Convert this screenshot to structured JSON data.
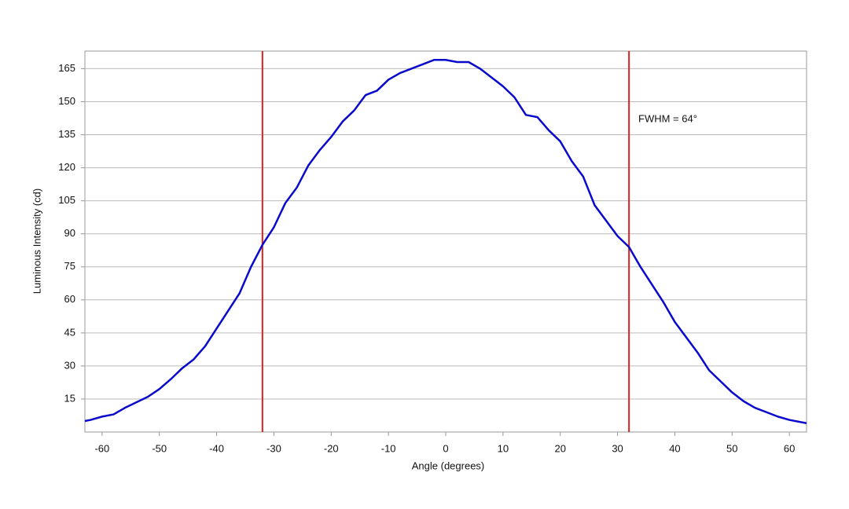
{
  "chart_data": {
    "type": "line",
    "x_label": "Angle (degrees)",
    "y_label": "Luminous Intensity (cd)",
    "annotation": "FWHM = 64°",
    "x": [
      -63,
      -62,
      -60,
      -58,
      -56,
      -54,
      -52,
      -50,
      -48,
      -46,
      -44,
      -42,
      -40,
      -38,
      -36,
      -34,
      -32,
      -30,
      -28,
      -26,
      -24,
      -22,
      -20,
      -18,
      -16,
      -14,
      -12,
      -10,
      -8,
      -6,
      -4,
      -2,
      0,
      2,
      4,
      6,
      8,
      10,
      12,
      14,
      16,
      18,
      20,
      22,
      24,
      26,
      28,
      30,
      32,
      34,
      36,
      38,
      40,
      42,
      44,
      46,
      48,
      50,
      52,
      54,
      56,
      58,
      60,
      63
    ],
    "series": [
      {
        "color": "#0a0acc",
        "values": [
          5,
          5.5,
          7,
          8,
          11,
          13.5,
          16,
          19.5,
          24,
          29,
          33,
          39,
          47,
          55,
          63,
          75,
          85,
          93,
          104,
          111,
          121,
          128,
          134,
          141,
          146,
          153,
          155,
          160,
          163,
          165,
          167,
          169,
          169,
          168,
          168,
          165,
          161,
          157,
          152,
          144,
          143,
          137,
          132,
          123,
          116,
          103,
          96,
          89,
          84,
          75,
          67,
          59,
          50,
          43,
          36,
          28,
          23,
          18,
          14,
          11,
          9,
          7,
          5.5,
          4
        ]
      }
    ],
    "vlines": [
      -32,
      32
    ],
    "vline_color": "#e02020",
    "xlim": [
      -63,
      63
    ],
    "ylim": [
      0,
      173
    ],
    "xticks": [
      -60,
      -50,
      -40,
      -30,
      -20,
      -10,
      0,
      10,
      20,
      30,
      40,
      50,
      60
    ],
    "yticks": [
      15,
      30,
      45,
      60,
      75,
      90,
      105,
      120,
      135,
      150,
      165
    ],
    "grid": true
  }
}
